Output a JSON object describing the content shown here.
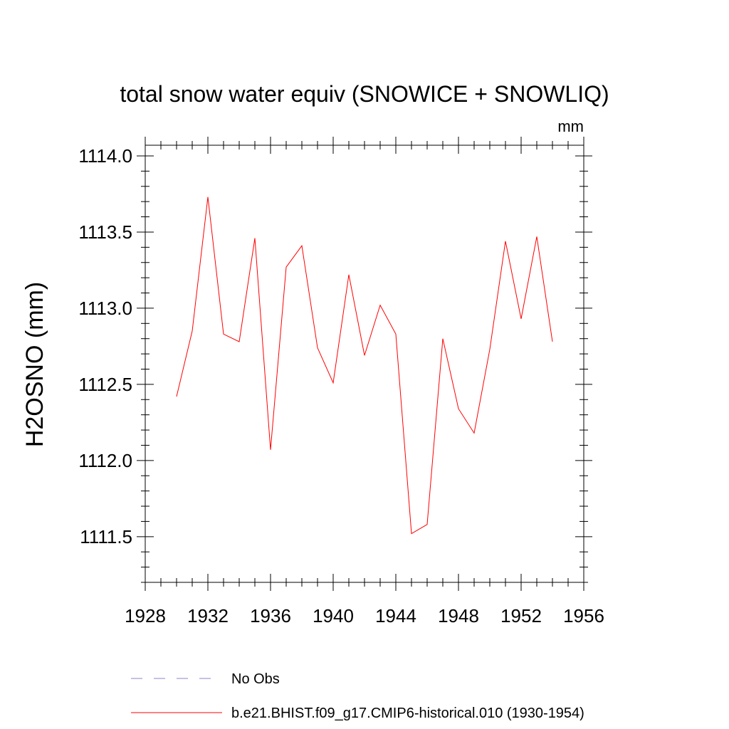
{
  "chart_data": {
    "type": "line",
    "title": "total snow water equiv (SNOWICE + SNOWLIQ)",
    "units": "mm",
    "ylabel": "H2OSNO  (mm)",
    "xlabel": "",
    "xlim": [
      1928,
      1956
    ],
    "ylim": [
      1111.2,
      1114.07
    ],
    "x_ticks": [
      "1928",
      "1932",
      "1936",
      "1940",
      "1944",
      "1948",
      "1952",
      "1956"
    ],
    "y_ticks": [
      "1111.5",
      "1112.0",
      "1112.5",
      "1113.0",
      "1113.5",
      "1114.0"
    ],
    "grid": false,
    "legend_position": "bottom",
    "legend": [
      {
        "label": "No Obs",
        "color": "#8a86c8",
        "dash": true
      },
      {
        "label": "b.e21.BHIST.f09_g17.CMIP6-historical.010 (1930-1954)",
        "color": "#ff0000",
        "dash": false
      }
    ],
    "series": [
      {
        "name": "b.e21.BHIST.f09_g17.CMIP6-historical.010 (1930-1954)",
        "color": "#ff0000",
        "x": [
          1930,
          1931,
          1932,
          1933,
          1934,
          1935,
          1936,
          1937,
          1938,
          1939,
          1940,
          1941,
          1942,
          1943,
          1944,
          1945,
          1946,
          1947,
          1948,
          1949,
          1950,
          1951,
          1952,
          1953,
          1954
        ],
        "y": [
          1112.42,
          1112.85,
          1113.73,
          1112.83,
          1112.78,
          1113.46,
          1112.07,
          1113.27,
          1113.41,
          1112.74,
          1112.51,
          1113.22,
          1112.69,
          1113.02,
          1112.83,
          1111.52,
          1111.58,
          1112.8,
          1112.34,
          1112.18,
          1112.73,
          1113.44,
          1112.93,
          1113.47,
          1112.78
        ]
      }
    ]
  }
}
